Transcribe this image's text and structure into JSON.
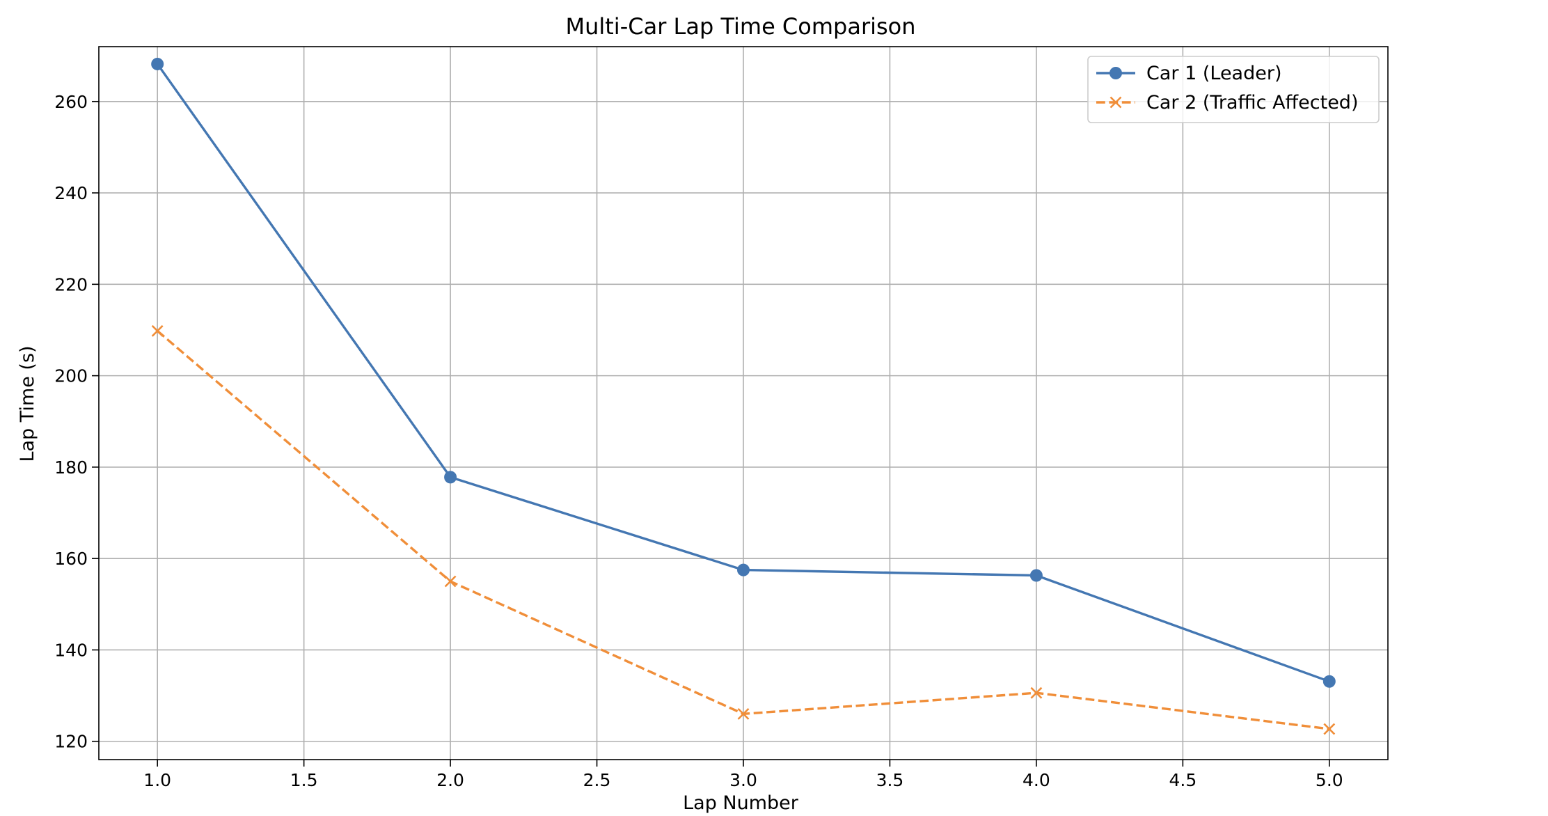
{
  "chart_data": {
    "type": "line",
    "title": "Multi-Car Lap Time Comparison",
    "xlabel": "Lap Number",
    "ylabel": "Lap Time (s)",
    "xlim": [
      0.8,
      5.2
    ],
    "ylim": [
      116,
      272
    ],
    "xticks": [
      1.0,
      1.5,
      2.0,
      2.5,
      3.0,
      3.5,
      4.0,
      4.5,
      5.0
    ],
    "xtick_labels": [
      "1.0",
      "1.5",
      "2.0",
      "2.5",
      "3.0",
      "3.5",
      "4.0",
      "4.5",
      "5.0"
    ],
    "yticks": [
      120,
      140,
      160,
      180,
      200,
      220,
      240,
      260
    ],
    "ytick_labels": [
      "120",
      "140",
      "160",
      "180",
      "200",
      "220",
      "240",
      "260"
    ],
    "grid": true,
    "legend_position": "top-right",
    "x": [
      1,
      2,
      3,
      4,
      5
    ],
    "series": [
      {
        "name": "Car 1 (Leader)",
        "values": [
          268.2,
          177.8,
          157.5,
          156.3,
          133.1
        ],
        "color": "#4477b2",
        "line_style": "solid",
        "marker": "circle"
      },
      {
        "name": "Car 2 (Traffic Affected)",
        "values": [
          209.8,
          155.0,
          126.0,
          130.6,
          122.7
        ],
        "color": "#f08e39",
        "line_style": "dashed",
        "marker": "x"
      }
    ]
  }
}
